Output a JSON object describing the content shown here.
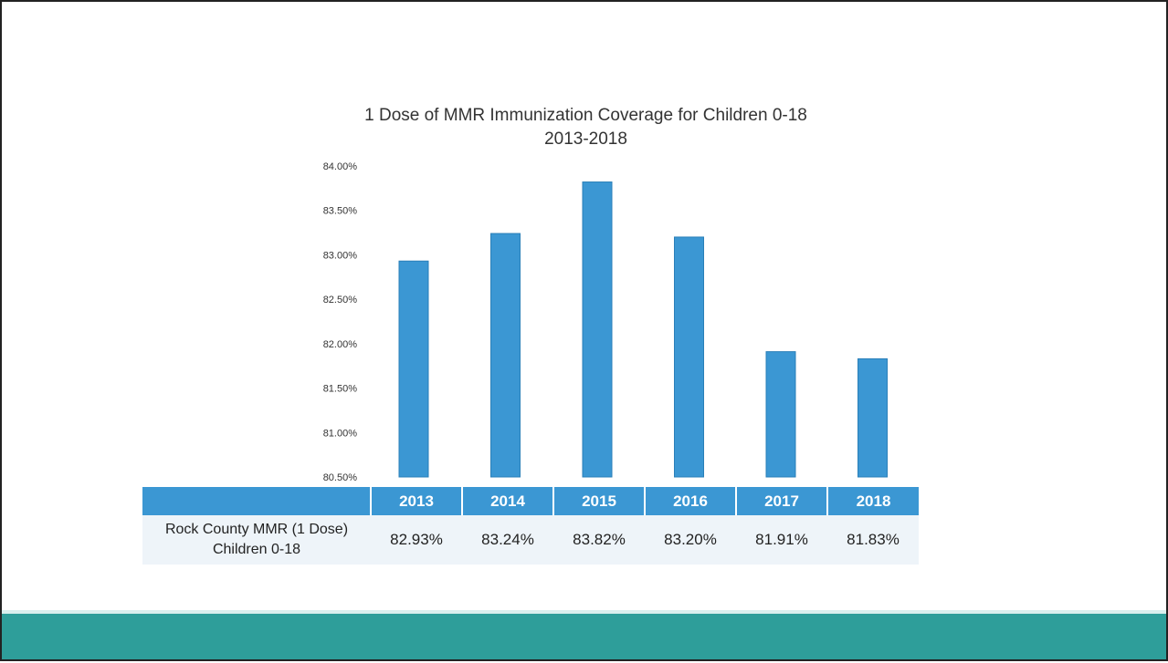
{
  "chart_data": {
    "type": "bar",
    "title": "1 Dose of MMR Immunization Coverage for Children 0-18",
    "subtitle": "2013-2018",
    "categories": [
      "2013",
      "2014",
      "2015",
      "2016",
      "2017",
      "2018"
    ],
    "values": [
      82.93,
      83.24,
      83.82,
      83.2,
      81.91,
      81.83
    ],
    "value_labels": [
      "82.93%",
      "83.24%",
      "83.82%",
      "83.20%",
      "81.91%",
      "81.83%"
    ],
    "ylim": [
      80.5,
      84.0
    ],
    "yticks": [
      80.5,
      81.0,
      81.5,
      82.0,
      82.5,
      83.0,
      83.5,
      84.0
    ],
    "ytick_labels": [
      "80.50%",
      "81.00%",
      "81.50%",
      "82.00%",
      "82.50%",
      "83.00%",
      "83.50%",
      "84.00%"
    ],
    "grid": false,
    "bar_color": "#3b97d3"
  },
  "table": {
    "row_label_line1": "Rock County MMR (1 Dose)",
    "row_label_line2": "Children 0-18"
  },
  "colors": {
    "footer": "#2e9e9a",
    "bar": "#3b97d3"
  }
}
